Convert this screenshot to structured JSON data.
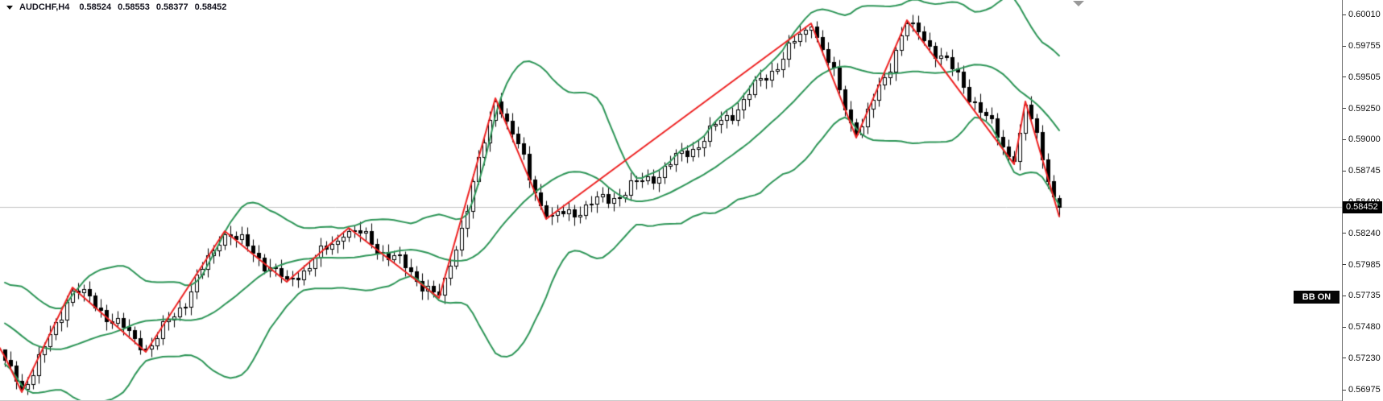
{
  "header": {
    "symbol_period": "AUDCHF,H4",
    "open": "0.58524",
    "high": "0.58553",
    "low": "0.58377",
    "close": "0.58452"
  },
  "badge": {
    "label": "BB ON"
  },
  "price_axis": {
    "ticks": [
      "0.60010",
      "0.59755",
      "0.59505",
      "0.59250",
      "0.59000",
      "0.58745",
      "0.58490",
      "0.58240",
      "0.57985",
      "0.57735",
      "0.57480",
      "0.57230",
      "0.56975"
    ],
    "current_price": "0.58452"
  },
  "chart_data": {
    "type": "candlestick",
    "symbol": "AUDCHF",
    "timeframe": "H4",
    "bars_visible": 188,
    "current_price": 0.58452,
    "last_candle": {
      "open": 0.58524,
      "high": 0.58553,
      "low": 0.58377,
      "close": 0.58452
    },
    "y_axis": {
      "min": 0.56975,
      "max": 0.6001,
      "tick_step": 0.00255
    },
    "grid": "off",
    "legend": "none",
    "indicators": {
      "bollinger_bands": {
        "period": 20,
        "deviation": 2,
        "applied_to": "close",
        "color": "#2e9658",
        "line_width": 2
      },
      "zigzag": {
        "color": "#ee2222",
        "line_width": 2,
        "points": [
          {
            "bar": -1,
            "price": 0.5732
          },
          {
            "bar": 0,
            "price": 0.57242
          },
          {
            "bar": 3,
            "price": 0.56956
          },
          {
            "bar": 12,
            "price": 0.57802
          },
          {
            "bar": 25,
            "price": 0.57281
          },
          {
            "bar": 39,
            "price": 0.58258
          },
          {
            "bar": 50,
            "price": 0.57848
          },
          {
            "bar": 61,
            "price": 0.58284
          },
          {
            "bar": 77,
            "price": 0.57717
          },
          {
            "bar": 87,
            "price": 0.59333
          },
          {
            "bar": 96,
            "price": 0.58356
          },
          {
            "bar": 143,
            "price": 0.59938
          },
          {
            "bar": 151,
            "price": 0.59014
          },
          {
            "bar": 160,
            "price": 0.59964
          },
          {
            "bar": 179,
            "price": 0.58799
          },
          {
            "bar": 181,
            "price": 0.59307
          },
          {
            "bar": 187,
            "price": 0.58377
          }
        ]
      }
    },
    "colors": {
      "background": "#ffffff",
      "bull_candle": "#ffffff",
      "bear_candle": "#000000",
      "candle_outline": "#000000",
      "bid_line": "#c4c4c4",
      "axis_text": "#101010",
      "price_tag_bg": "#000000",
      "price_tag_text": "#ffffff"
    }
  }
}
